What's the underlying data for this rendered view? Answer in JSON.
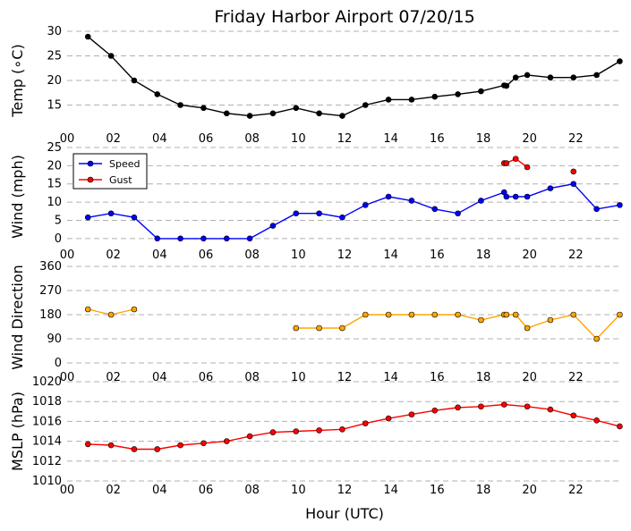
{
  "chart_data": [
    {
      "type": "line",
      "title": "Friday Harbor Airport 07/20/15",
      "ylabel": "Temp (∘C)",
      "ylim": [
        10,
        30
      ],
      "yticks": [
        15,
        20,
        25,
        30
      ],
      "grid": true,
      "series": [
        {
          "color": "#000000",
          "x": [
            0.9,
            1.9,
            2.9,
            3.9,
            4.9,
            5.9,
            6.9,
            7.9,
            8.9,
            9.9,
            10.9,
            11.9,
            12.9,
            13.9,
            14.9,
            15.9,
            16.9,
            17.9,
            18.9,
            19.0,
            19.4,
            19.9,
            20.9,
            21.9,
            22.9,
            23.9
          ],
          "y": [
            28.9,
            25.0,
            20.0,
            17.2,
            15.0,
            14.4,
            13.3,
            12.8,
            13.3,
            14.4,
            13.3,
            12.8,
            15.0,
            16.1,
            16.1,
            16.7,
            17.2,
            17.8,
            19.0,
            18.9,
            20.6,
            21.1,
            20.6,
            20.6,
            21.1,
            23.9
          ]
        }
      ]
    },
    {
      "type": "line",
      "ylabel": "Wind (mph)",
      "ylim": [
        -2,
        25
      ],
      "yticks": [
        0,
        5,
        10,
        15,
        20,
        25
      ],
      "grid": true,
      "legend": {
        "position": "top-left",
        "entries": [
          "Speed",
          "Gust"
        ]
      },
      "series": [
        {
          "name": "Speed",
          "color": "#0000ff",
          "x": [
            0.9,
            1.9,
            2.9,
            3.9,
            4.9,
            5.9,
            6.9,
            7.9,
            8.9,
            9.9,
            10.9,
            11.9,
            12.9,
            13.9,
            14.9,
            15.9,
            16.9,
            17.9,
            18.9,
            19.0,
            19.4,
            19.9,
            20.9,
            21.9,
            22.9,
            23.9
          ],
          "y": [
            5.8,
            6.9,
            5.8,
            0,
            0,
            0,
            0,
            0,
            3.5,
            6.9,
            6.9,
            5.8,
            9.2,
            11.5,
            10.4,
            8.1,
            6.9,
            10.4,
            12.7,
            11.5,
            11.5,
            11.5,
            13.8,
            15.0,
            8.1,
            9.2
          ]
        },
        {
          "name": "Gust",
          "color": "#ff0000",
          "x": [
            18.9,
            19.0,
            19.4,
            19.9,
            21.9
          ],
          "y": [
            20.7,
            20.7,
            21.9,
            19.6,
            18.4
          ],
          "segments": [
            [
              0,
              1,
              2,
              3
            ],
            [
              4
            ]
          ]
        }
      ]
    },
    {
      "type": "scatter",
      "ylabel": "Wind Direction",
      "ylim": [
        -20,
        360
      ],
      "yticks": [
        0,
        90,
        180,
        270,
        360
      ],
      "grid": true,
      "series": [
        {
          "color": "#ffa500",
          "x": [
            0.9,
            1.9,
            2.9,
            9.9,
            10.9,
            11.9,
            12.9,
            13.9,
            14.9,
            15.9,
            16.9,
            17.9,
            18.9,
            19.0,
            19.4,
            19.9,
            20.9,
            21.9,
            22.9,
            23.9
          ],
          "y": [
            200,
            180,
            200,
            130,
            130,
            130,
            180,
            180,
            180,
            180,
            180,
            160,
            180,
            180,
            180,
            130,
            160,
            180,
            90,
            180
          ],
          "segments": [
            [
              0,
              1,
              2
            ],
            [
              3,
              4,
              5,
              6,
              7,
              8,
              9,
              10,
              11,
              12,
              13,
              14,
              15,
              16,
              17,
              18,
              19
            ]
          ]
        }
      ]
    },
    {
      "type": "line",
      "ylabel": "MSLP (hPa)",
      "xlabel": "Hour (UTC)",
      "ylim": [
        1010,
        1020
      ],
      "yticks": [
        1010,
        1012,
        1014,
        1016,
        1018,
        1020
      ],
      "grid": true,
      "series": [
        {
          "color": "#ff0000",
          "x": [
            0.9,
            1.9,
            2.9,
            3.9,
            4.9,
            5.9,
            6.9,
            7.9,
            8.9,
            9.9,
            10.9,
            11.9,
            12.9,
            13.9,
            14.9,
            15.9,
            16.9,
            17.9,
            18.9,
            19.9,
            20.9,
            21.9,
            22.9,
            23.9
          ],
          "y": [
            1013.7,
            1013.6,
            1013.2,
            1013.2,
            1013.6,
            1013.8,
            1014.0,
            1014.5,
            1014.9,
            1015.0,
            1015.1,
            1015.2,
            1015.8,
            1016.3,
            1016.7,
            1017.1,
            1017.4,
            1017.5,
            1017.7,
            1017.5,
            1017.2,
            1016.6,
            1016.1,
            1015.5
          ]
        }
      ]
    }
  ],
  "x_axis": {
    "range": [
      0,
      24
    ],
    "tick_values": [
      0,
      2,
      4,
      6,
      8,
      10,
      12,
      14,
      16,
      18,
      20,
      22
    ],
    "tick_labels": [
      "00",
      "02",
      "04",
      "06",
      "08",
      "10",
      "12",
      "14",
      "16",
      "18",
      "20",
      "22"
    ]
  }
}
